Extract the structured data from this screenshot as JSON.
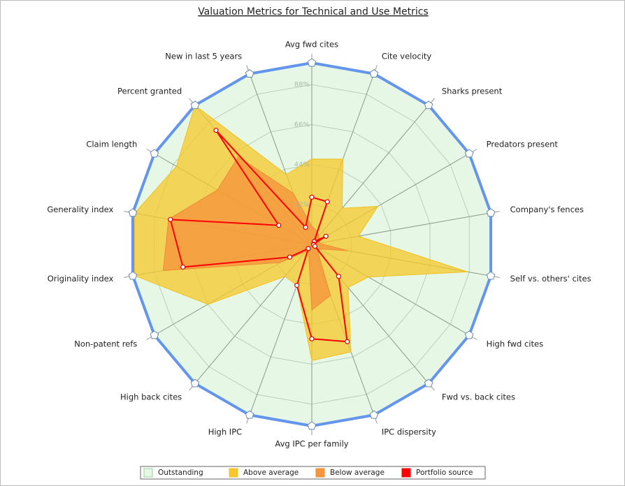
{
  "chart_data": {
    "type": "radar",
    "title": "Valuation Metrics for Technical and Use Metrics",
    "categories": [
      "Avg fwd cites",
      "Cite velocity",
      "Sharks present",
      "Predators present",
      "Company's fences",
      "Self vs. others' cites",
      "High fwd cites",
      "Fwd vs. back cites",
      "IPC dispersity",
      "Avg IPC per family",
      "High IPC",
      "High back cites",
      "Non-patent refs",
      "Originality index",
      "Generality index",
      "Claim length",
      "Percent granted",
      "New in last 5 years"
    ],
    "ylim": [
      0,
      100
    ],
    "yticks": [
      {
        "value": 22,
        "label": "22%"
      },
      {
        "value": 44,
        "label": "44%"
      },
      {
        "value": 66,
        "label": "66%"
      },
      {
        "value": 88,
        "label": "88%"
      }
    ],
    "series": [
      {
        "name": "Outstanding",
        "color": "#e6f7e6",
        "values": [
          100,
          100,
          100,
          100,
          100,
          100,
          100,
          100,
          100,
          100,
          100,
          100,
          100,
          100,
          100,
          100,
          100,
          100
        ]
      },
      {
        "name": "Above average",
        "color": "#f5c82a",
        "values": [
          47,
          50,
          26,
          42,
          26,
          87,
          36,
          31,
          63,
          64,
          24,
          23,
          66,
          99,
          99,
          86,
          100,
          41
        ]
      },
      {
        "name": "Below average",
        "color": "#f5963c",
        "values": [
          10,
          8,
          6,
          5,
          4,
          20,
          5,
          5,
          30,
          36,
          5,
          5,
          20,
          83,
          80,
          60,
          63,
          30
        ]
      },
      {
        "name": "Portfolio source",
        "color": "#ff0000",
        "values": [
          26,
          25,
          2,
          9,
          1,
          1,
          2,
          23,
          57,
          52,
          24,
          3,
          14,
          72,
          79,
          21,
          82,
          10
        ]
      }
    ]
  }
}
